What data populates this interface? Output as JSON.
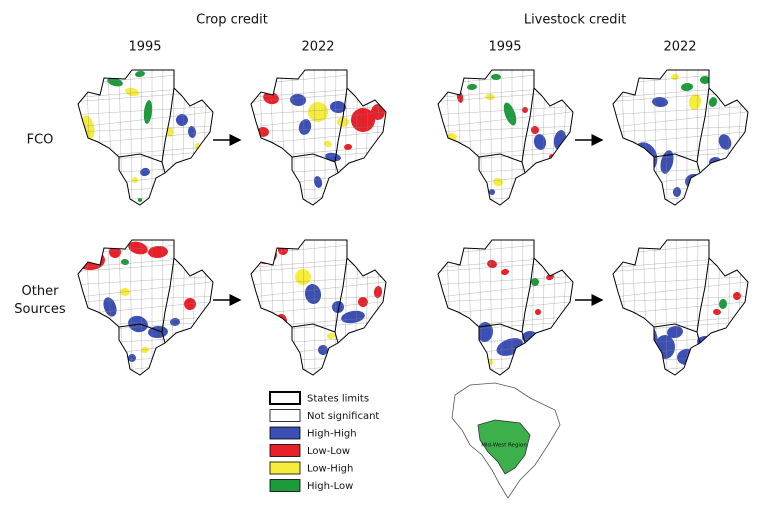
{
  "panels": {
    "columns": [
      {
        "title": "Crop credit",
        "years": [
          "1995",
          "2022"
        ]
      },
      {
        "title": "Livestock credit",
        "years": [
          "1995",
          "2022"
        ]
      }
    ],
    "rows": [
      "FCO",
      "Other Sources"
    ]
  },
  "legend": [
    {
      "label": "States limits",
      "color": "#ffffff"
    },
    {
      "label": "Not significant",
      "color": "#ffffff"
    },
    {
      "label": "High-High",
      "color": "#3b4fb4"
    },
    {
      "label": "Low-Low",
      "color": "#e8202a"
    },
    {
      "label": "Low-High",
      "color": "#f6ec3c"
    },
    {
      "label": "High-Low",
      "color": "#1d9a3c"
    }
  ],
  "inset": {
    "label": "Mid-West Region",
    "color": "#3cb04a"
  }
}
